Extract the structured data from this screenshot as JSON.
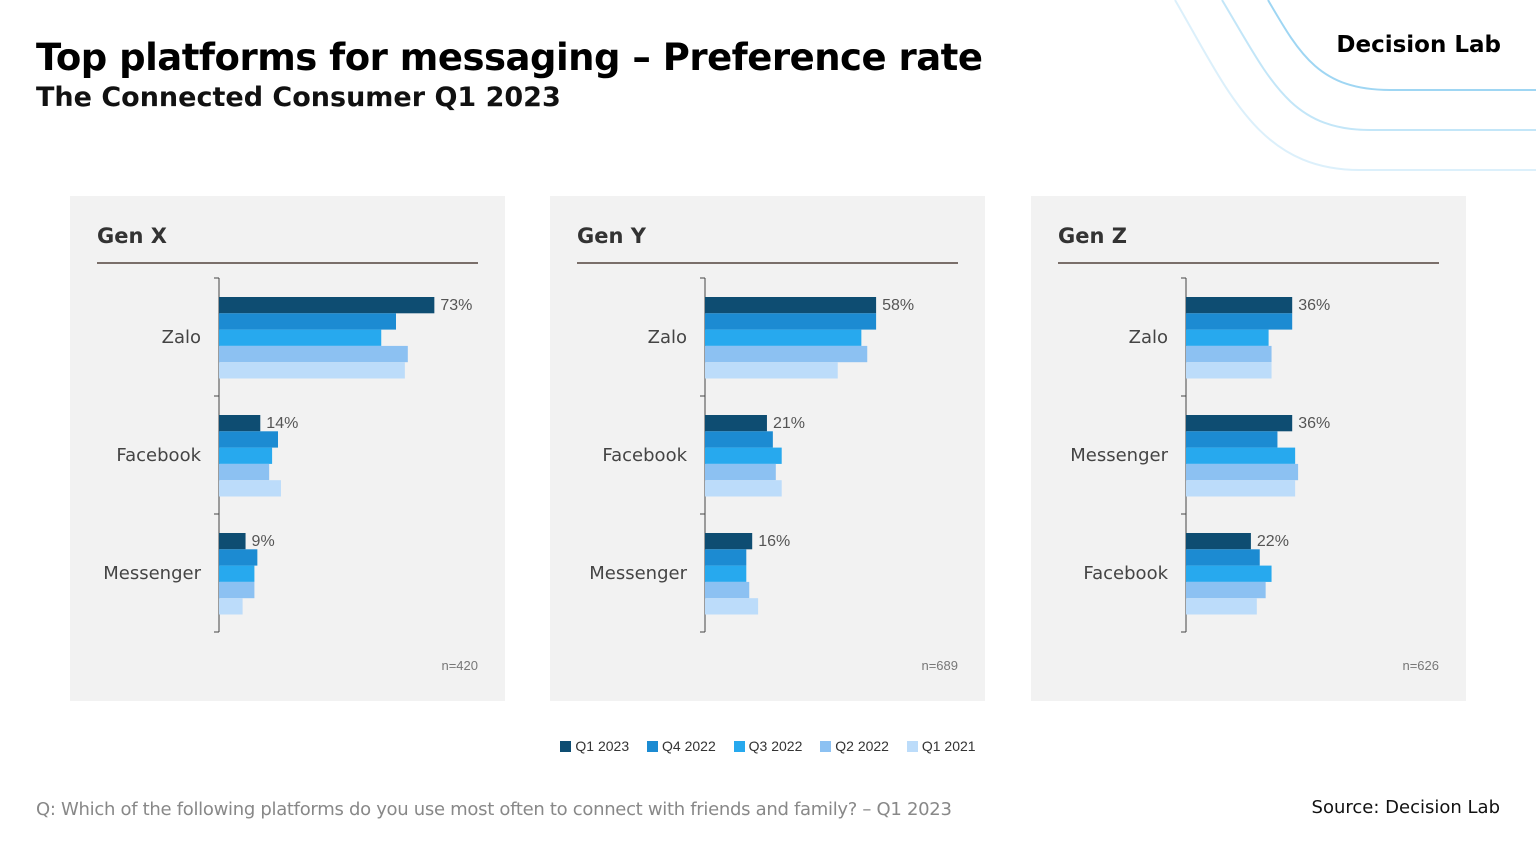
{
  "header": {
    "title": "Top platforms for messaging – Preference rate",
    "subtitle": "The Connected Consumer Q1 2023",
    "brand": "Decision Lab"
  },
  "colors": {
    "series": [
      "#0e4d72",
      "#1c8bd2",
      "#27a9ee",
      "#8cc1f2",
      "#bcdcfa"
    ],
    "panel_bg": "#f2f2f2",
    "decor_lines": "#a9dcf5"
  },
  "legend": [
    "Q1 2023",
    "Q4 2022",
    "Q3 2022",
    "Q2 2022",
    "Q1 2021"
  ],
  "footer": {
    "question": "Q: Which of the following platforms do you use most often to connect with friends and family? – Q1 2023",
    "source": "Source: Decision Lab"
  },
  "chart_data": [
    {
      "type": "bar",
      "orientation": "horizontal",
      "title": "Gen X",
      "n_label": "n=420",
      "categories": [
        "Zalo",
        "Facebook",
        "Messenger"
      ],
      "series": [
        {
          "name": "Q1 2023",
          "values": [
            73,
            14,
            9
          ]
        },
        {
          "name": "Q4 2022",
          "values": [
            60,
            20,
            13
          ]
        },
        {
          "name": "Q3 2022",
          "values": [
            55,
            18,
            12
          ]
        },
        {
          "name": "Q2 2022",
          "values": [
            64,
            17,
            12
          ]
        },
        {
          "name": "Q1 2021",
          "values": [
            63,
            21,
            8
          ]
        }
      ],
      "data_labels": [
        "73%",
        "14%",
        "9%"
      ],
      "xlim": [
        0,
        100
      ]
    },
    {
      "type": "bar",
      "orientation": "horizontal",
      "title": "Gen Y",
      "n_label": "n=689",
      "categories": [
        "Zalo",
        "Facebook",
        "Messenger"
      ],
      "series": [
        {
          "name": "Q1 2023",
          "values": [
            58,
            21,
            16
          ]
        },
        {
          "name": "Q4 2022",
          "values": [
            58,
            23,
            14
          ]
        },
        {
          "name": "Q3 2022",
          "values": [
            53,
            26,
            14
          ]
        },
        {
          "name": "Q2 2022",
          "values": [
            55,
            24,
            15
          ]
        },
        {
          "name": "Q1 2021",
          "values": [
            45,
            26,
            18
          ]
        }
      ],
      "data_labels": [
        "58%",
        "21%",
        "16%"
      ],
      "xlim": [
        0,
        100
      ]
    },
    {
      "type": "bar",
      "orientation": "horizontal",
      "title": "Gen Z",
      "n_label": "n=626",
      "categories": [
        "Zalo",
        "Messenger",
        "Facebook"
      ],
      "series": [
        {
          "name": "Q1 2023",
          "values": [
            36,
            36,
            22
          ]
        },
        {
          "name": "Q4 2022",
          "values": [
            36,
            31,
            25
          ]
        },
        {
          "name": "Q3 2022",
          "values": [
            28,
            37,
            29
          ]
        },
        {
          "name": "Q2 2022",
          "values": [
            29,
            38,
            27
          ]
        },
        {
          "name": "Q1 2021",
          "values": [
            29,
            37,
            24
          ]
        }
      ],
      "data_labels": [
        "36%",
        "36%",
        "22%"
      ],
      "xlim": [
        0,
        100
      ]
    }
  ]
}
